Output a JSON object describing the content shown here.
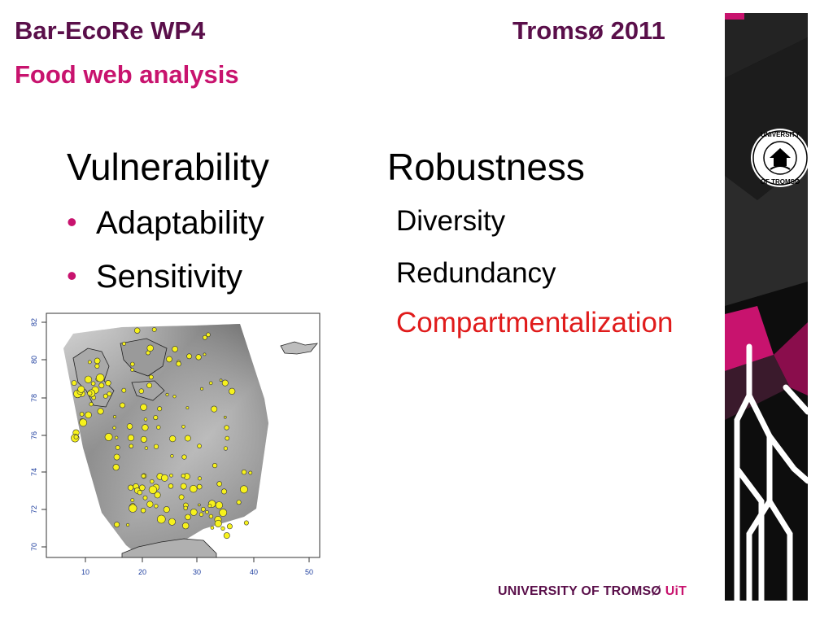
{
  "header": {
    "title_left": "Bar-EcoRe WP4",
    "title_right": "Tromsø 2011",
    "subtitle": "Food web analysis"
  },
  "columns": {
    "left": {
      "title": "Vulnerability",
      "bullets": [
        "Adaptability",
        "Sensitivity"
      ]
    },
    "right": {
      "title": "Robustness",
      "items": [
        "Diversity",
        "Redundancy",
        "Compartmentalization"
      ]
    }
  },
  "map": {
    "x_ticks": [
      "10",
      "20",
      "30",
      "40",
      "50"
    ],
    "y_ticks": [
      "70",
      "72",
      "74",
      "76",
      "78",
      "80",
      "82"
    ]
  },
  "footer": {
    "logo_text": "UNIVERSITY OF TROMSØ",
    "logo_suffix": "UiT"
  },
  "side_logo": {
    "top_text": "UNIVERSITY",
    "bottom_text": "OF TROMSØ"
  },
  "colors": {
    "header_purple": "#5a0f4a",
    "accent_magenta": "#c8136e",
    "highlight_red": "#e01b1b",
    "station_yellow": "#f7f21c"
  }
}
